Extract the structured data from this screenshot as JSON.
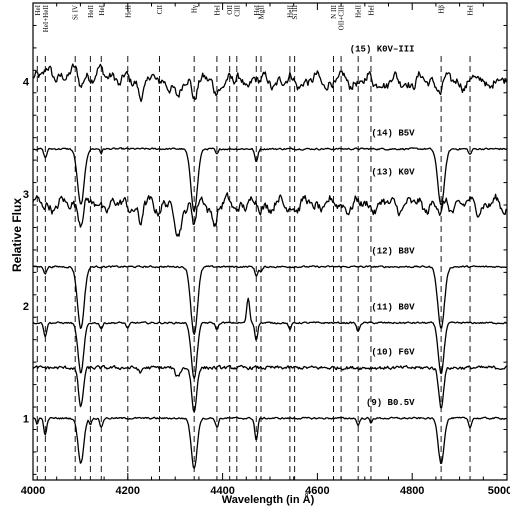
{
  "chart_data": {
    "type": "line",
    "title": "",
    "xlabel": "Wavelength (in Å)",
    "ylabel": "Relative Flux",
    "xlim": [
      4000,
      5000
    ],
    "ylim": [
      0.45,
      4.7
    ],
    "x_ticks": [
      4000,
      4200,
      4400,
      4600,
      4800,
      5000
    ],
    "y_ticks": [
      1,
      2,
      3,
      4
    ],
    "grid": false,
    "line_marks": [
      {
        "label": "HeI",
        "x": 4009
      },
      {
        "label": "HeI+HeII",
        "x": 4026
      },
      {
        "label": "Si IV",
        "x": 4089
      },
      {
        "label": "HeII",
        "x": 4121
      },
      {
        "label": "HeI",
        "x": 4144
      },
      {
        "label": "HeII",
        "x": 4200
      },
      {
        "label": "CII",
        "x": 4267
      },
      {
        "label": "Hγ",
        "x": 4340
      },
      {
        "label": "HeI",
        "x": 4388
      },
      {
        "label": "OII",
        "x": 4415
      },
      {
        "label": "CIII",
        "x": 4430
      },
      {
        "label": "HeI",
        "x": 4471
      },
      {
        "label": "MgII",
        "x": 4481
      },
      {
        "label": "HeII",
        "x": 4542
      },
      {
        "label": "Si III",
        "x": 4552
      },
      {
        "label": "N III",
        "x": 4634
      },
      {
        "label": "OII+CIII",
        "x": 4650
      },
      {
        "label": "HeII",
        "x": 4686
      },
      {
        "label": "HeI",
        "x": 4713
      },
      {
        "label": "Hβ",
        "x": 4861
      },
      {
        "label": "HeI",
        "x": 4922
      }
    ],
    "series": [
      {
        "name": "(15) K0V–III",
        "offset": 4.0,
        "type": "late",
        "dips": [
          [
            4101,
            0.07,
            4
          ],
          [
            4226,
            0.12,
            4
          ],
          [
            4305,
            0.18,
            6
          ],
          [
            4384,
            0.12,
            4
          ],
          [
            4340,
            0.1,
            4
          ],
          [
            4861,
            0.08,
            4
          ]
        ]
      },
      {
        "name": "(14) B5V",
        "offset": 3.4,
        "type": "early",
        "dips": [
          [
            4101,
            0.5,
            7
          ],
          [
            4340,
            0.55,
            7
          ],
          [
            4861,
            0.5,
            7
          ],
          [
            4026,
            0.08,
            3
          ],
          [
            4471,
            0.12,
            3
          ],
          [
            4388,
            0.05,
            3
          ],
          [
            4922,
            0.05,
            3
          ],
          [
            4144,
            0.04,
            2
          ]
        ]
      },
      {
        "name": "(13) K0V",
        "offset": 2.9,
        "type": "late",
        "dips": [
          [
            4101,
            0.1,
            4
          ],
          [
            4226,
            0.2,
            4
          ],
          [
            4305,
            0.3,
            6
          ],
          [
            4384,
            0.18,
            4
          ],
          [
            4340,
            0.15,
            4
          ],
          [
            4861,
            0.1,
            4
          ]
        ]
      },
      {
        "name": "(12) B8V",
        "offset": 2.35,
        "type": "early",
        "dips": [
          [
            4101,
            0.55,
            7
          ],
          [
            4340,
            0.6,
            7
          ],
          [
            4861,
            0.55,
            7
          ],
          [
            4026,
            0.06,
            3
          ],
          [
            4471,
            0.08,
            3
          ],
          [
            4481,
            0.05,
            3
          ]
        ]
      },
      {
        "name": "(11) B0V",
        "offset": 1.85,
        "type": "early",
        "dips": [
          [
            4101,
            0.45,
            6
          ],
          [
            4340,
            0.5,
            6
          ],
          [
            4861,
            0.45,
            6
          ],
          [
            4026,
            0.12,
            3
          ],
          [
            4471,
            0.15,
            3
          ],
          [
            4686,
            0.08,
            3
          ],
          [
            4200,
            0.05,
            3
          ],
          [
            4542,
            0.06,
            3
          ],
          [
            4388,
            0.06,
            3
          ],
          [
            4144,
            0.05,
            3
          ]
        ],
        "bumps": [
          [
            4454,
            0.22,
            3
          ]
        ]
      },
      {
        "name": "(10) F6V",
        "offset": 1.45,
        "type": "mid",
        "dips": [
          [
            4101,
            0.35,
            5
          ],
          [
            4340,
            0.4,
            5
          ],
          [
            4861,
            0.35,
            5
          ],
          [
            4226,
            0.05,
            3
          ],
          [
            4305,
            0.08,
            5
          ]
        ]
      },
      {
        "name": "(9) B0.5V",
        "offset": 1.0,
        "type": "early",
        "dips": [
          [
            4101,
            0.4,
            6
          ],
          [
            4340,
            0.45,
            6
          ],
          [
            4861,
            0.4,
            6
          ],
          [
            4026,
            0.15,
            3
          ],
          [
            4471,
            0.2,
            3
          ],
          [
            4388,
            0.08,
            3
          ],
          [
            4144,
            0.08,
            3
          ],
          [
            4922,
            0.08,
            3
          ],
          [
            4009,
            0.05,
            2
          ],
          [
            4121,
            0.06,
            2
          ],
          [
            4686,
            0.06,
            3
          ],
          [
            4713,
            0.05,
            2
          ]
        ]
      }
    ]
  }
}
